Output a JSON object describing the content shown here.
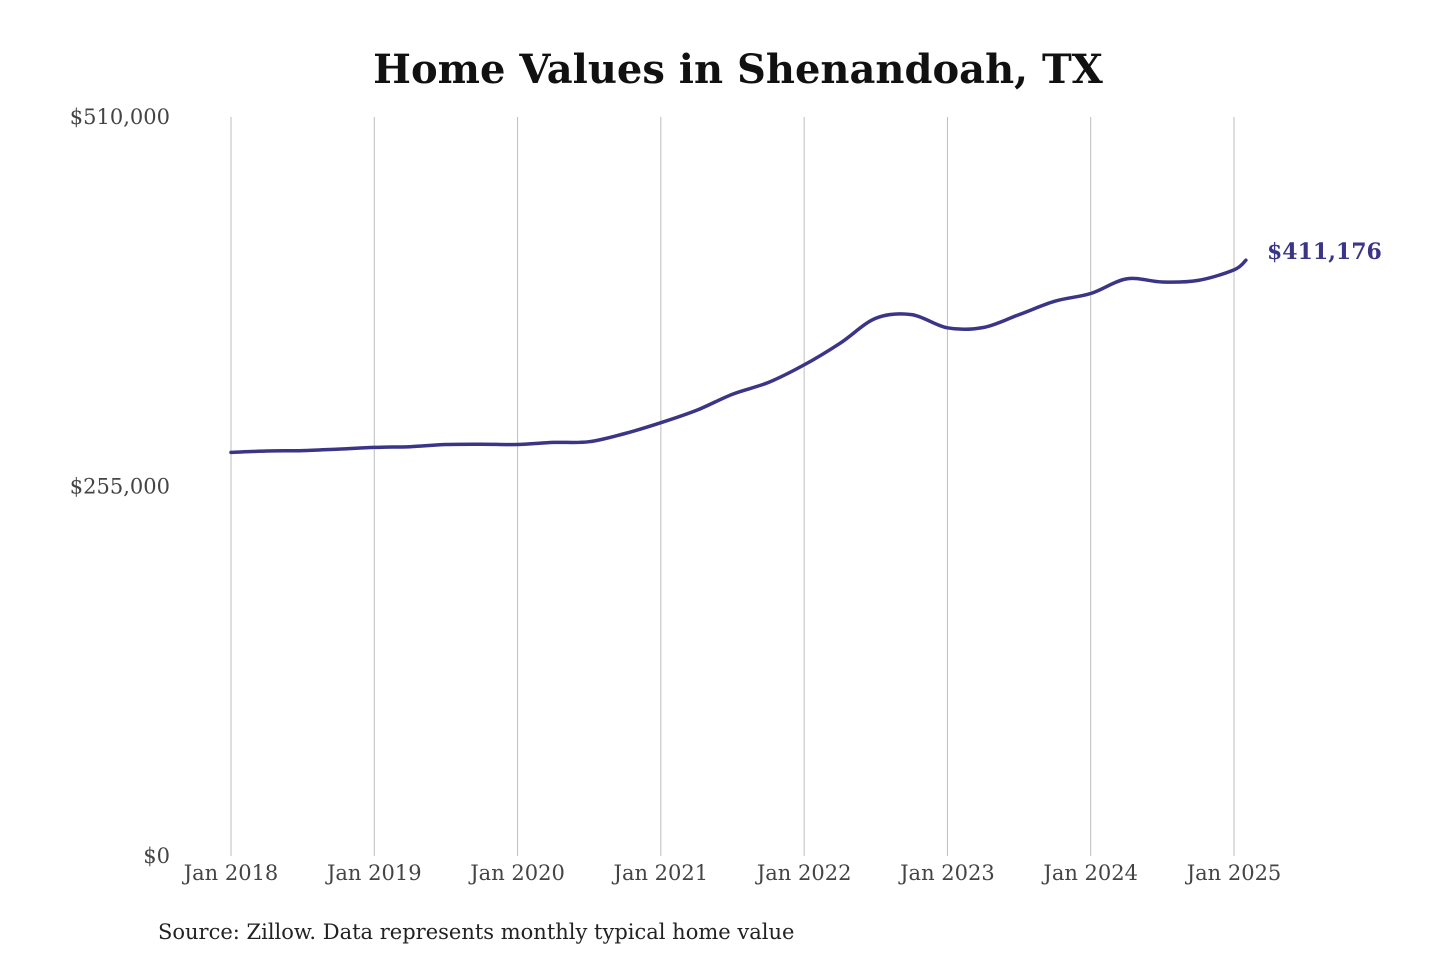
{
  "chart_data": {
    "type": "line",
    "title": "Home Values in Shenandoah, TX",
    "source_note": "Source: Zillow. Data represents monthly typical home value",
    "ylim": [
      0,
      510000
    ],
    "y_ticks": [
      {
        "value": 0,
        "label": "$0"
      },
      {
        "value": 255000,
        "label": "$255,000"
      },
      {
        "value": 510000,
        "label": "$510,000"
      }
    ],
    "x_range": [
      "2018-01",
      "2025-02"
    ],
    "x_ticks": [
      {
        "date": "2018-01",
        "label": "Jan 2018"
      },
      {
        "date": "2019-01",
        "label": "Jan 2019"
      },
      {
        "date": "2020-01",
        "label": "Jan 2020"
      },
      {
        "date": "2021-01",
        "label": "Jan 2021"
      },
      {
        "date": "2022-01",
        "label": "Jan 2022"
      },
      {
        "date": "2023-01",
        "label": "Jan 2023"
      },
      {
        "date": "2024-01",
        "label": "Jan 2024"
      },
      {
        "date": "2025-01",
        "label": "Jan 2025"
      }
    ],
    "grid": "vertical",
    "end_label": "$411,176",
    "line_color": "#3a3587",
    "series": [
      {
        "points": [
          {
            "x": "2018-01",
            "y": 278500
          },
          {
            "x": "2018-04",
            "y": 279500
          },
          {
            "x": "2018-07",
            "y": 279800
          },
          {
            "x": "2018-10",
            "y": 280800
          },
          {
            "x": "2019-01",
            "y": 282000
          },
          {
            "x": "2019-04",
            "y": 282500
          },
          {
            "x": "2019-07",
            "y": 284000
          },
          {
            "x": "2019-10",
            "y": 284200
          },
          {
            "x": "2020-01",
            "y": 284000
          },
          {
            "x": "2020-04",
            "y": 285400
          },
          {
            "x": "2020-07",
            "y": 285900
          },
          {
            "x": "2020-10",
            "y": 291600
          },
          {
            "x": "2021-01",
            "y": 299000
          },
          {
            "x": "2021-04",
            "y": 307600
          },
          {
            "x": "2021-07",
            "y": 318700
          },
          {
            "x": "2021-10",
            "y": 326800
          },
          {
            "x": "2022-01",
            "y": 338900
          },
          {
            "x": "2022-04",
            "y": 353800
          },
          {
            "x": "2022-07",
            "y": 371100
          },
          {
            "x": "2022-10",
            "y": 373600
          },
          {
            "x": "2023-01",
            "y": 364500
          },
          {
            "x": "2023-04",
            "y": 364700
          },
          {
            "x": "2023-07",
            "y": 373600
          },
          {
            "x": "2023-10",
            "y": 382900
          },
          {
            "x": "2024-01",
            "y": 388200
          },
          {
            "x": "2024-04",
            "y": 398300
          },
          {
            "x": "2024-07",
            "y": 396100
          },
          {
            "x": "2024-10",
            "y": 397200
          },
          {
            "x": "2025-01",
            "y": 404500
          },
          {
            "x": "2025-02",
            "y": 411176
          }
        ]
      }
    ]
  }
}
